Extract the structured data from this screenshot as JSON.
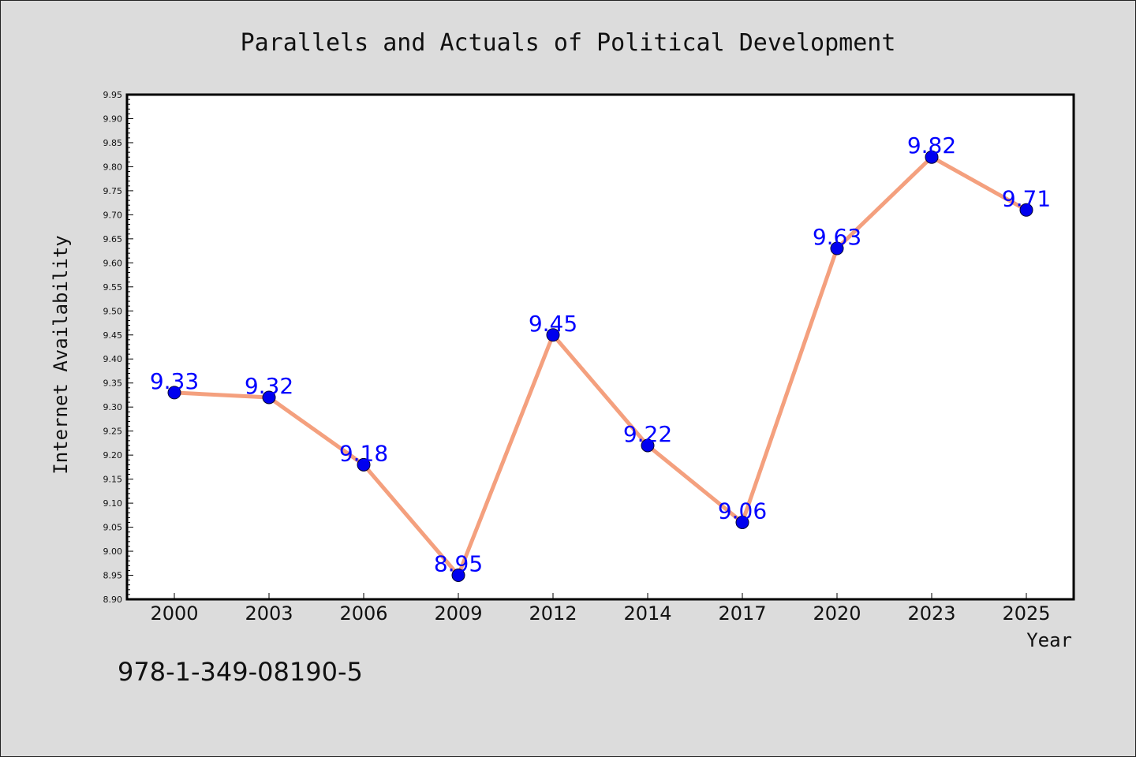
{
  "chart_data": {
    "type": "line",
    "title": "Parallels and Actuals of Political Development",
    "xlabel": "Year",
    "ylabel": "Internet Availability",
    "categories": [
      "2000",
      "2003",
      "2006",
      "2009",
      "2012",
      "2014",
      "2017",
      "2020",
      "2023",
      "2025"
    ],
    "series": [
      {
        "values": [
          9.33,
          9.32,
          9.18,
          8.95,
          9.45,
          9.22,
          9.06,
          9.63,
          9.82,
          9.71
        ],
        "line_color": "#f4a07e",
        "marker_color": "#0000ee",
        "label_color": "#0000ff"
      }
    ],
    "ylim": [
      8.9,
      9.95
    ],
    "ytick_step": 0.05,
    "ytick_labels": [
      "8.90",
      "8.95",
      "9.00",
      "9.05",
      "9.10",
      "9.15",
      "9.20",
      "9.25",
      "9.30",
      "9.35",
      "9.40",
      "9.45",
      "9.50",
      "9.55",
      "9.60",
      "9.65",
      "9.70",
      "9.75",
      "9.80",
      "9.85",
      "9.90",
      "9.95"
    ],
    "data_labels": [
      "9.33",
      "9.32",
      "9.18",
      "8.95",
      "9.45",
      "9.22",
      "9.06",
      "9.63",
      "9.82",
      "9.71"
    ],
    "grid": false,
    "legend": "none"
  },
  "footer": {
    "isbn": "978-1-349-08190-5"
  }
}
